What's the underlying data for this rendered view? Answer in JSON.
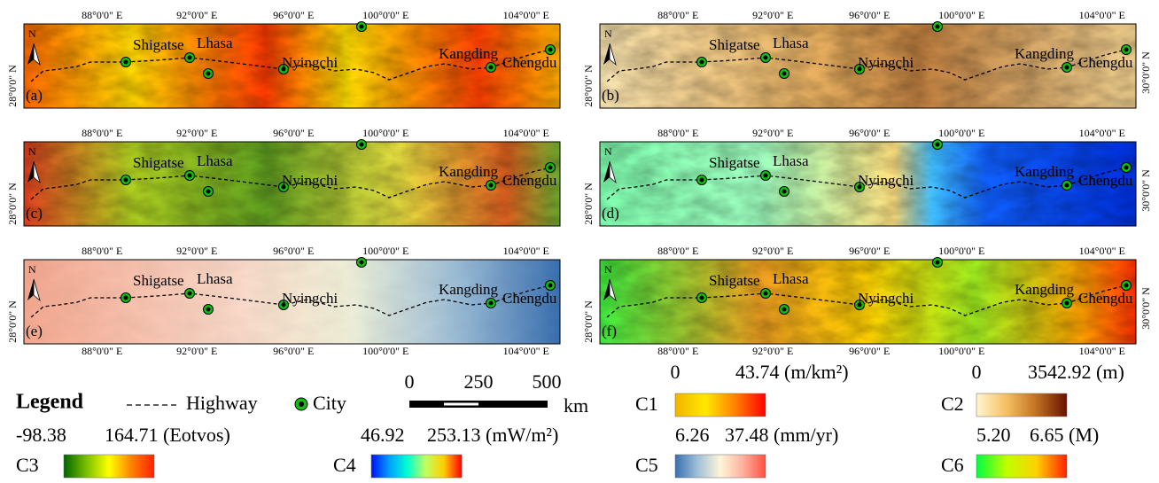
{
  "panels": [
    {
      "label": "(a)"
    },
    {
      "label": "(b)"
    },
    {
      "label": "(c)"
    },
    {
      "label": "(d)"
    },
    {
      "label": "(e)"
    },
    {
      "label": "(f)"
    }
  ],
  "lon_ticks": [
    "88°0'0\" E",
    "92°0'0\" E",
    "96°0'0\" E",
    "100°0'0\" E",
    "104°0'0\" E"
  ],
  "lat_ticks": {
    "left": "28°0'0\" N",
    "right": "30°0'0\" N"
  },
  "north": "N",
  "cities": [
    "Shigatse",
    "Lhasa",
    "Nyingchi",
    "Kangding",
    "Chengdu"
  ],
  "legend": {
    "title": "Legend",
    "highway": "Highway",
    "city": "City"
  },
  "scale_bar": {
    "ticks": [
      "0",
      "250",
      "500"
    ],
    "unit": "km"
  },
  "colorbars": [
    {
      "name": "C1",
      "min": "0",
      "max": "43.74 (m/km²)",
      "colors": [
        "#f2b400",
        "#ffe800",
        "#ff8000",
        "#ff0000"
      ]
    },
    {
      "name": "C2",
      "min": "0",
      "max": "3542.92 (m)",
      "colors": [
        "#fff6d0",
        "#f5c060",
        "#c07020",
        "#6a1000"
      ]
    },
    {
      "name": "C3",
      "min": "-98.38",
      "max": "164.71 (Eotvos)",
      "colors": [
        "#006400",
        "#7ac000",
        "#ffff00",
        "#ff8000",
        "#ff2000"
      ]
    },
    {
      "name": "C4",
      "min": "46.92",
      "max": "253.13 (mW/m²)",
      "colors": [
        "#0010ff",
        "#00a0ff",
        "#00ffd0",
        "#c0ff60",
        "#ffd000",
        "#ff0000"
      ]
    },
    {
      "name": "C5",
      "min": "6.26",
      "max": "37.48 (mm/yr)",
      "colors": [
        "#3a70b0",
        "#a0c0d8",
        "#fff6d8",
        "#ffb0a0",
        "#ff5040"
      ]
    },
    {
      "name": "C6",
      "min": "5.20",
      "max": "6.65 (M)",
      "colors": [
        "#00ff40",
        "#c0ff00",
        "#ffd000",
        "#ff2000"
      ]
    }
  ]
}
